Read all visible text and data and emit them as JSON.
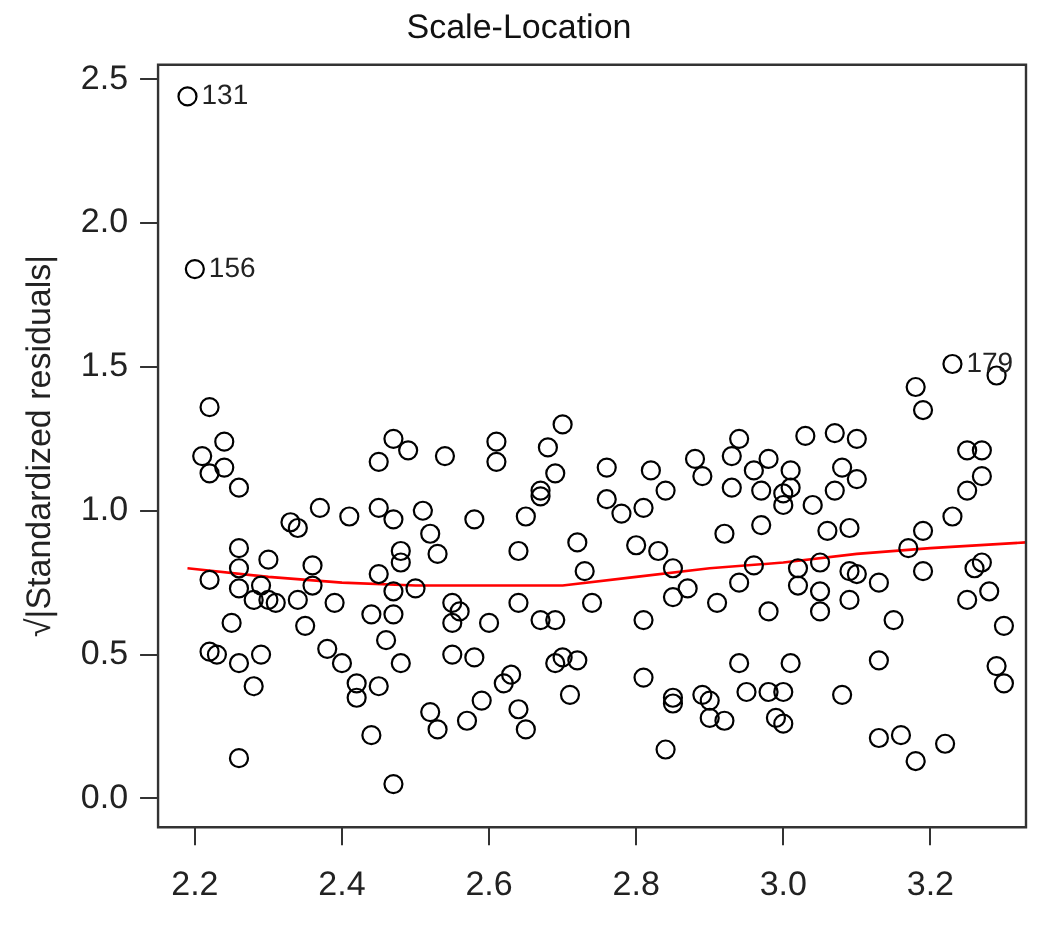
{
  "chart_data": {
    "type": "scatter",
    "title": "Scale-Location",
    "ylabel": "√|Standardized residuals|",
    "xlim": [
      2.15,
      3.33
    ],
    "ylim": [
      -0.1,
      2.55
    ],
    "xticks": [
      2.2,
      2.4,
      2.6,
      2.8,
      {
        "value": 3,
        "label": "3.0"
      },
      3.2
    ],
    "yticks": [
      {
        "value": 0,
        "label": "0.0"
      },
      0.5,
      {
        "value": 1,
        "label": "1.0"
      },
      1.5,
      {
        "value": 2,
        "label": "2.0"
      },
      2.5
    ],
    "grid": false,
    "legend": false,
    "series": [
      {
        "marker": "circle",
        "color": "#000000",
        "x": [
          2.19,
          2.2,
          2.22,
          2.24,
          2.21,
          2.24,
          2.22,
          2.26,
          2.47,
          2.49,
          2.45,
          2.54,
          2.61,
          2.61,
          2.68,
          2.7,
          2.69,
          2.67,
          3.23,
          3.29,
          3.18,
          3.19,
          2.94,
          3.03,
          3.07,
          3.1,
          3.25,
          3.27,
          2.76,
          2.82,
          2.88,
          2.89,
          2.93,
          2.96,
          2.98,
          3.01,
          3.08,
          3.1,
          3.27,
          2.37,
          2.41,
          2.33,
          2.34,
          2.45,
          2.47,
          2.51,
          2.52,
          2.53,
          2.58,
          2.65,
          2.67,
          2.64,
          2.48,
          2.48,
          2.26,
          2.3,
          2.36,
          2.22,
          2.26,
          2.26,
          2.29,
          2.28,
          2.3,
          2.31,
          2.34,
          2.36,
          2.39,
          2.45,
          2.47,
          2.5,
          2.44,
          2.47,
          2.55,
          2.56,
          2.55,
          2.6,
          2.64,
          2.67,
          2.25,
          2.35,
          2.22,
          2.23,
          2.26,
          2.29,
          2.28,
          2.38,
          2.4,
          2.42,
          2.42,
          2.45,
          2.46,
          2.48,
          2.55,
          2.58,
          2.52,
          2.53,
          2.57,
          2.59,
          2.62,
          2.63,
          2.64,
          2.65,
          2.44,
          2.26,
          2.47,
          2.69,
          2.71,
          2.76,
          2.78,
          2.81,
          2.84,
          2.93,
          2.97,
          3.0,
          3.0,
          3.01,
          3.04,
          3.07,
          2.97,
          2.92,
          3.06,
          3.09,
          3.19,
          3.23,
          3.25,
          2.72,
          2.8,
          2.83,
          2.73,
          2.85,
          2.85,
          2.87,
          2.91,
          2.94,
          2.96,
          2.98,
          3.02,
          3.02,
          3.05,
          3.05,
          3.05,
          3.09,
          3.09,
          3.1,
          3.13,
          3.15,
          3.17,
          3.19,
          3.26,
          3.27,
          3.25,
          3.28,
          3.3,
          2.74,
          2.81,
          2.69,
          2.7,
          2.72,
          2.81,
          2.85,
          2.85,
          2.89,
          2.9,
          2.9,
          2.92,
          2.94,
          2.95,
          2.98,
          3.0,
          2.99,
          3.0,
          3.01,
          3.08,
          3.13,
          3.13,
          3.16,
          3.18,
          3.22,
          3.29,
          3.3,
          2.84
        ],
        "values": [
          2.44,
          1.84,
          1.36,
          1.24,
          1.19,
          1.15,
          1.13,
          1.08,
          1.25,
          1.21,
          1.17,
          1.19,
          1.24,
          1.17,
          1.22,
          1.3,
          1.13,
          1.07,
          1.51,
          1.47,
          1.43,
          1.35,
          1.25,
          1.26,
          1.27,
          1.25,
          1.21,
          1.21,
          1.15,
          1.14,
          1.18,
          1.12,
          1.19,
          1.14,
          1.18,
          1.14,
          1.15,
          1.11,
          1.12,
          1.01,
          0.98,
          0.96,
          0.94,
          1.01,
          0.97,
          1.0,
          0.92,
          0.85,
          0.97,
          0.98,
          1.05,
          0.86,
          0.86,
          0.82,
          0.87,
          0.83,
          0.81,
          0.76,
          0.8,
          0.73,
          0.74,
          0.69,
          0.69,
          0.68,
          0.69,
          0.74,
          0.68,
          0.78,
          0.72,
          0.73,
          0.64,
          0.64,
          0.68,
          0.65,
          0.61,
          0.61,
          0.68,
          0.62,
          0.61,
          0.6,
          0.51,
          0.5,
          0.47,
          0.5,
          0.39,
          0.52,
          0.47,
          0.4,
          0.35,
          0.39,
          0.55,
          0.47,
          0.5,
          0.49,
          0.3,
          0.24,
          0.27,
          0.34,
          0.4,
          0.43,
          0.31,
          0.24,
          0.22,
          0.14,
          0.05,
          0.47,
          0.36,
          1.04,
          0.99,
          1.01,
          1.07,
          1.08,
          1.07,
          1.06,
          1.02,
          1.08,
          1.02,
          1.07,
          0.95,
          0.92,
          0.93,
          0.94,
          0.93,
          0.98,
          1.07,
          0.89,
          0.88,
          0.86,
          0.79,
          0.8,
          0.7,
          0.73,
          0.68,
          0.75,
          0.81,
          0.65,
          0.74,
          0.8,
          0.82,
          0.72,
          0.65,
          0.69,
          0.79,
          0.78,
          0.75,
          0.62,
          0.87,
          0.79,
          0.8,
          0.82,
          0.69,
          0.72,
          0.6,
          0.68,
          0.62,
          0.62,
          0.49,
          0.48,
          0.42,
          0.35,
          0.33,
          0.36,
          0.34,
          0.28,
          0.27,
          0.47,
          0.37,
          0.37,
          0.37,
          0.28,
          0.26,
          0.47,
          0.36,
          0.48,
          0.21,
          0.22,
          0.13,
          0.19,
          0.46,
          0.4,
          0.17
        ]
      },
      {
        "type": "line",
        "marker": "none",
        "color": "#ff0000",
        "x": [
          2.19,
          2.3,
          2.4,
          2.5,
          2.6,
          2.7,
          2.8,
          2.9,
          3.0,
          3.1,
          3.2,
          3.33
        ],
        "values": [
          0.8,
          0.77,
          0.75,
          0.74,
          0.74,
          0.74,
          0.77,
          0.8,
          0.82,
          0.85,
          0.87,
          0.89
        ]
      }
    ],
    "annotations": [
      {
        "text": "131",
        "x": 2.19,
        "y": 2.44
      },
      {
        "text": "156",
        "x": 2.2,
        "y": 1.84
      },
      {
        "text": "179",
        "x": 3.23,
        "y": 1.51
      }
    ]
  }
}
